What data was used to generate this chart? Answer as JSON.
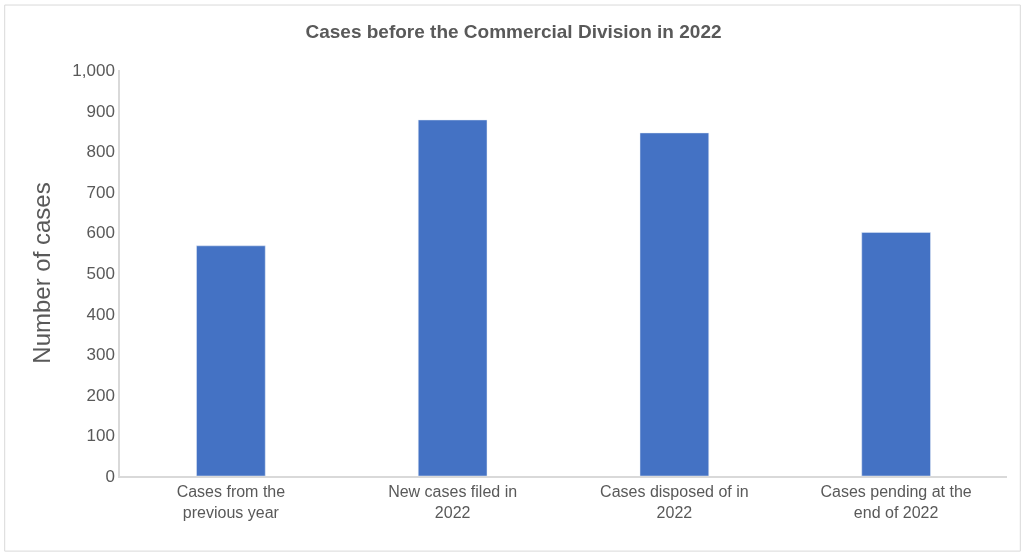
{
  "chart_data": {
    "type": "bar",
    "title": "Cases before the Commercial Division in 2022",
    "categories": [
      "Cases from the previous year",
      "New cases filed in 2022",
      "Cases disposed of in 2022",
      "Cases pending at the end of 2022"
    ],
    "values": [
      567,
      877,
      845,
      600
    ],
    "color": "#4472c4",
    "ylabel": "Number of cases",
    "ylim": [
      0,
      1000
    ],
    "yticks": [
      0,
      100,
      200,
      300,
      400,
      500,
      600,
      700,
      800,
      900,
      {
        "value": 1000,
        "label": "1,000"
      }
    ],
    "grid": false
  }
}
